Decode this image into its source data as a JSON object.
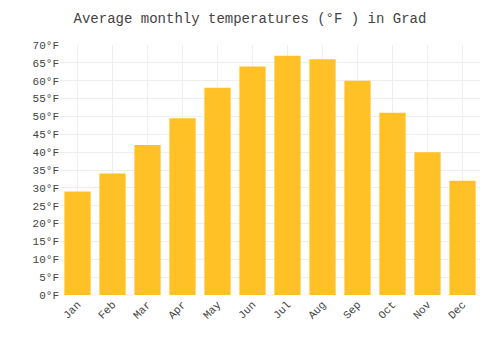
{
  "chart_data": {
    "type": "bar",
    "title": "Average monthly temperatures (°F ) in Grad",
    "categories": [
      "Jan",
      "Feb",
      "Mar",
      "Apr",
      "May",
      "Jun",
      "Jul",
      "Aug",
      "Sep",
      "Oct",
      "Nov",
      "Dec"
    ],
    "values": [
      29,
      34,
      42,
      49.5,
      58,
      64,
      67,
      66,
      60,
      51,
      40,
      32
    ],
    "color": "#FFC125",
    "ylim": [
      0,
      70
    ],
    "yticks": [
      {
        "value": 0,
        "label": "0°F"
      },
      {
        "value": 5,
        "label": "5°F"
      },
      {
        "value": 10,
        "label": "10°F"
      },
      {
        "value": 15,
        "label": "15°F"
      },
      {
        "value": 20,
        "label": "20°F"
      },
      {
        "value": 25,
        "label": "25°F"
      },
      {
        "value": 30,
        "label": "30°F"
      },
      {
        "value": 35,
        "label": "35°F"
      },
      {
        "value": 40,
        "label": "40°F"
      },
      {
        "value": 45,
        "label": "45°F"
      },
      {
        "value": 50,
        "label": "50°F"
      },
      {
        "value": 55,
        "label": "55°F"
      },
      {
        "value": 60,
        "label": "60°F"
      },
      {
        "value": 65,
        "label": "65°F"
      },
      {
        "value": 70,
        "label": "70°F"
      }
    ],
    "grid": true
  }
}
